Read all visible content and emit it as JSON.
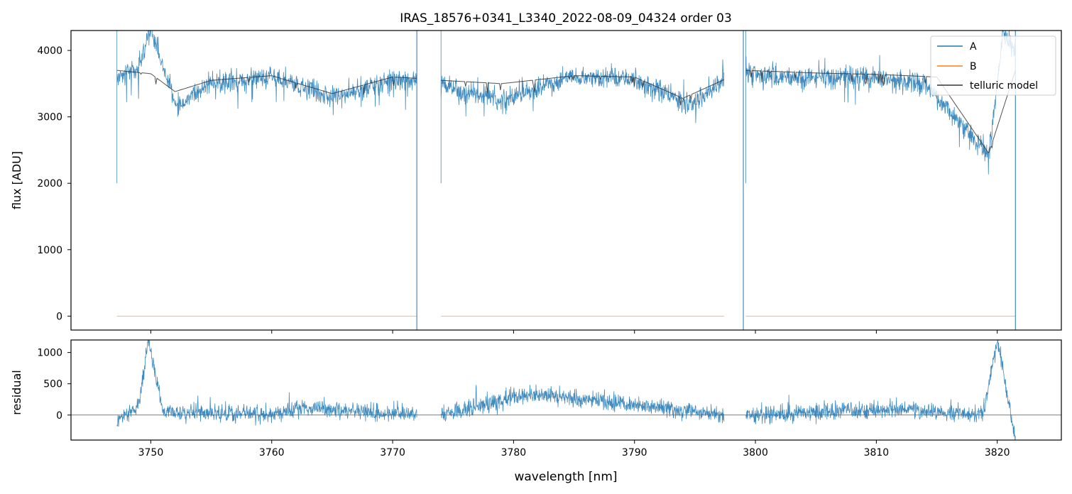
{
  "chart_data": [
    {
      "type": "line",
      "title": "IRAS_18576+0341_L3340_2022-08-09_04324  order 03",
      "ylabel": "flux [ADU]",
      "xlim": [
        3743.4,
        3825.3
      ],
      "ylim": [
        -210,
        4300
      ],
      "xticks": [
        3750,
        3760,
        3770,
        3780,
        3790,
        3800,
        3810,
        3820
      ],
      "yticks": [
        0,
        1000,
        2000,
        3000,
        4000
      ],
      "yticklabels": [
        "0",
        "1000",
        "2000",
        "3000",
        "4000"
      ],
      "legend_position": "top-right",
      "legend": [
        "A",
        "B",
        "telluric model"
      ],
      "segments": [
        [
          3747.2,
          3772.0
        ],
        [
          3774.0,
          3797.4
        ],
        [
          3799.2,
          3821.5
        ]
      ],
      "series": [
        {
          "name": "A",
          "color": "#1f77b4",
          "x": [
            3747.2,
            3749.0,
            3750.0,
            3752.2,
            3755.0,
            3760.0,
            3765.0,
            3770.0,
            3772.0,
            3774.0,
            3775.5,
            3779.2,
            3785.0,
            3790.0,
            3794.5,
            3797.4,
            3799.2,
            3802.0,
            3806.0,
            3810.0,
            3814.0,
            3819.3,
            3820.5,
            3821.5
          ],
          "y": [
            3600,
            3750,
            4300,
            3150,
            3500,
            3600,
            3300,
            3550,
            3550,
            3520,
            3380,
            3250,
            3600,
            3580,
            3150,
            3560,
            3650,
            3600,
            3600,
            3580,
            3500,
            2420,
            4300,
            4000
          ]
        },
        {
          "name": "B",
          "color": "#ff7f0e",
          "x": [
            3747.2,
            3772.0,
            3774.0,
            3797.4,
            3799.2,
            3821.5
          ],
          "y": [
            0,
            0,
            0,
            0,
            0,
            0
          ]
        },
        {
          "name": "telluric model",
          "color": "#333333",
          "x": [
            3747.2,
            3750.0,
            3752.0,
            3755.0,
            3760.0,
            3765.0,
            3770.0,
            3772.0,
            3774.0,
            3779.0,
            3785.0,
            3790.0,
            3794.0,
            3797.4,
            3799.2,
            3805.0,
            3810.0,
            3815.0,
            3819.3,
            3821.5
          ],
          "y": [
            3700,
            3650,
            3380,
            3550,
            3620,
            3350,
            3600,
            3580,
            3550,
            3500,
            3620,
            3600,
            3280,
            3560,
            3700,
            3660,
            3640,
            3600,
            2450,
            3700
          ]
        }
      ]
    },
    {
      "type": "line",
      "xlabel": "wavelength [nm]",
      "ylabel": "residual",
      "xlim": [
        3743.4,
        3825.3
      ],
      "ylim": [
        -400,
        1200
      ],
      "xticks": [
        3750,
        3760,
        3770,
        3780,
        3790,
        3800,
        3810,
        3820
      ],
      "xticklabels": [
        "3750",
        "3760",
        "3770",
        "3780",
        "3790",
        "3800",
        "3810",
        "3820"
      ],
      "yticks": [
        0,
        500,
        1000
      ],
      "yticklabels": [
        "0",
        "500",
        "1000"
      ],
      "series": [
        {
          "name": "",
          "color": "#1f77b4",
          "x": [
            3747.2,
            3749.0,
            3749.8,
            3751.0,
            3760.0,
            3762.5,
            3772.0,
            3774.0,
            3781.5,
            3797.4,
            3799.2,
            3812.0,
            3818.8,
            3820.0,
            3821.5
          ],
          "y": [
            -100,
            150,
            1200,
            50,
            0,
            120,
            0,
            0,
            350,
            0,
            0,
            100,
            0,
            1200,
            -400
          ]
        }
      ]
    }
  ]
}
